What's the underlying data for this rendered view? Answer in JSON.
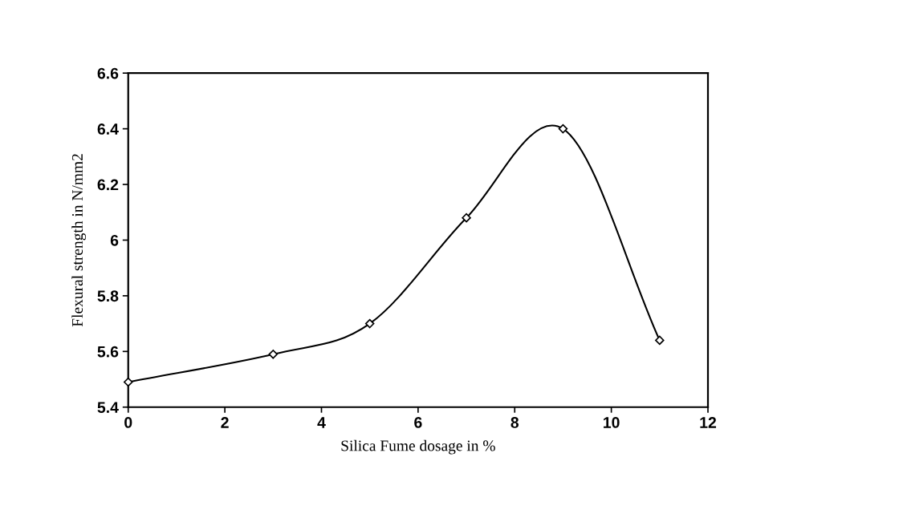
{
  "chart_data": {
    "type": "line",
    "xlabel": "Silica Fume dosage in %",
    "ylabel": "Flexural strength in N/mm2",
    "x": [
      0,
      3,
      5,
      7,
      9,
      11
    ],
    "series": [
      {
        "color": "#000000",
        "values": [
          5.49,
          5.59,
          5.7,
          6.08,
          6.4,
          5.64
        ]
      }
    ],
    "xlim": [
      0,
      12
    ],
    "xticks": [
      0,
      2,
      4,
      6,
      8,
      10,
      12
    ],
    "ylim": [
      5.4,
      6.6
    ],
    "yticks": [
      {
        "value": 5.4,
        "label": "5.4"
      },
      {
        "value": 5.6,
        "label": "5.6"
      },
      {
        "value": 5.8,
        "label": "5.8"
      },
      {
        "value": 6.0,
        "label": "6"
      },
      {
        "value": 6.2,
        "label": "6.2"
      },
      {
        "value": 6.4,
        "label": "6.4"
      },
      {
        "value": 6.6,
        "label": "6.6"
      }
    ],
    "marker": "diamond",
    "line_style": "solid",
    "grid": false,
    "legend": false
  }
}
